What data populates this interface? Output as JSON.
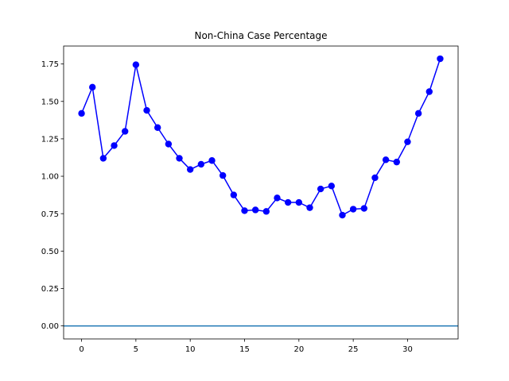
{
  "chart_data": {
    "type": "line",
    "title": "Non-China Case Percentage",
    "xlabel": "",
    "ylabel": "",
    "xlim": [
      -1.65,
      34.65
    ],
    "ylim": [
      -0.087,
      1.87
    ],
    "xticks": [
      0,
      5,
      10,
      15,
      20,
      25,
      30
    ],
    "yticks": [
      0.0,
      0.25,
      0.5,
      0.75,
      1.0,
      1.25,
      1.5,
      1.75
    ],
    "grid": false,
    "series": [
      {
        "name": "",
        "color": "#0000ff",
        "marker": "circle",
        "x": [
          0,
          1,
          2,
          3,
          4,
          5,
          6,
          7,
          8,
          9,
          10,
          11,
          12,
          13,
          14,
          15,
          16,
          17,
          18,
          19,
          20,
          21,
          22,
          23,
          24,
          25,
          26,
          27,
          28,
          29,
          30,
          31,
          32,
          33
        ],
        "y": [
          1.42,
          1.595,
          1.12,
          1.205,
          1.3,
          1.745,
          1.44,
          1.325,
          1.215,
          1.12,
          1.045,
          1.08,
          1.105,
          1.005,
          0.875,
          0.77,
          0.775,
          0.765,
          0.855,
          0.825,
          0.825,
          0.79,
          0.915,
          0.935,
          0.74,
          0.78,
          0.785,
          0.99,
          1.11,
          1.095,
          1.23,
          1.42,
          1.565,
          1.785
        ]
      }
    ],
    "hlines": [
      {
        "y": 0.0,
        "color": "#1f77b4"
      }
    ]
  }
}
